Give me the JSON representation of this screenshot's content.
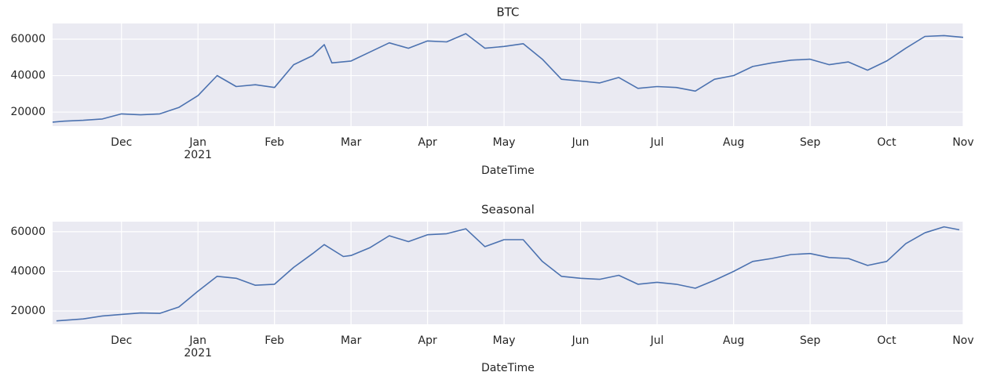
{
  "chart_data": [
    {
      "type": "line",
      "title": "BTC",
      "x_label": "DateTime",
      "color": "#4c72b0",
      "grid": true,
      "background": "#eaeaf2",
      "x": [
        0.1,
        0.25,
        0.5,
        0.75,
        1.0,
        1.25,
        1.5,
        1.75,
        2.0,
        2.25,
        2.5,
        2.75,
        3.0,
        3.25,
        3.5,
        3.65,
        3.75,
        4.0,
        4.25,
        4.5,
        4.75,
        5.0,
        5.25,
        5.5,
        5.75,
        6.0,
        6.25,
        6.5,
        6.75,
        7.0,
        7.25,
        7.5,
        7.75,
        8.0,
        8.25,
        8.5,
        8.75,
        9.0,
        9.25,
        9.5,
        9.75,
        10.0,
        10.25,
        10.5,
        10.75,
        11.0,
        11.25,
        11.5,
        11.75,
        12.0
      ],
      "values": [
        14500,
        15000,
        15500,
        16200,
        19000,
        18500,
        19000,
        22500,
        29000,
        40000,
        34000,
        35000,
        33500,
        46000,
        51000,
        57000,
        47000,
        48000,
        53000,
        58000,
        55000,
        59000,
        58500,
        63000,
        55000,
        56000,
        57500,
        49000,
        38000,
        37000,
        36000,
        39000,
        33000,
        34000,
        33500,
        31500,
        38000,
        40000,
        45000,
        47000,
        48500,
        49000,
        46000,
        47500,
        43000,
        48000,
        55000,
        61500,
        62000,
        61000
      ],
      "xlim": [
        0.1,
        12
      ],
      "xticks": [
        {
          "value": 1,
          "label": "Dec"
        },
        {
          "value": 2,
          "label": "Jan\n2021"
        },
        {
          "value": 3,
          "label": "Feb"
        },
        {
          "value": 4,
          "label": "Mar"
        },
        {
          "value": 5,
          "label": "Apr"
        },
        {
          "value": 6,
          "label": "May"
        },
        {
          "value": 7,
          "label": "Jun"
        },
        {
          "value": 8,
          "label": "Jul"
        },
        {
          "value": 9,
          "label": "Aug"
        },
        {
          "value": 10,
          "label": "Sep"
        },
        {
          "value": 11,
          "label": "Oct"
        },
        {
          "value": 12,
          "label": "Nov"
        }
      ],
      "ylim": [
        12300,
        68600
      ],
      "yticks": [
        20000,
        40000,
        60000
      ]
    },
    {
      "type": "line",
      "title": "Seasonal",
      "x_label": "DateTime",
      "color": "#4c72b0",
      "grid": true,
      "background": "#eaeaf2",
      "x": [
        0.15,
        0.5,
        0.75,
        1.0,
        1.25,
        1.5,
        1.75,
        2.0,
        2.25,
        2.5,
        2.75,
        3.0,
        3.25,
        3.5,
        3.65,
        3.9,
        4.0,
        4.25,
        4.5,
        4.75,
        5.0,
        5.25,
        5.5,
        5.75,
        6.0,
        6.25,
        6.5,
        6.75,
        7.0,
        7.25,
        7.5,
        7.75,
        8.0,
        8.25,
        8.5,
        8.75,
        9.0,
        9.25,
        9.5,
        9.75,
        10.0,
        10.25,
        10.5,
        10.75,
        11.0,
        11.25,
        11.5,
        11.75,
        11.95
      ],
      "values": [
        15000,
        16000,
        17500,
        18300,
        19000,
        18800,
        22000,
        30000,
        37500,
        36500,
        33000,
        33500,
        42000,
        49000,
        53500,
        47500,
        48000,
        52000,
        58000,
        55000,
        58500,
        59000,
        61500,
        52500,
        56000,
        56000,
        45000,
        37500,
        36500,
        36000,
        38000,
        33500,
        34500,
        33500,
        31500,
        35500,
        40000,
        45000,
        46500,
        48500,
        49000,
        47000,
        46500,
        43000,
        45000,
        54000,
        59500,
        62500,
        61000
      ],
      "xlim": [
        0.1,
        12
      ],
      "xticks": [
        {
          "value": 1,
          "label": "Dec"
        },
        {
          "value": 2,
          "label": "Jan\n2021"
        },
        {
          "value": 3,
          "label": "Feb"
        },
        {
          "value": 4,
          "label": "Mar"
        },
        {
          "value": 5,
          "label": "Apr"
        },
        {
          "value": 6,
          "label": "May"
        },
        {
          "value": 7,
          "label": "Jun"
        },
        {
          "value": 8,
          "label": "Jul"
        },
        {
          "value": 9,
          "label": "Aug"
        },
        {
          "value": 10,
          "label": "Sep"
        },
        {
          "value": 11,
          "label": "Oct"
        },
        {
          "value": 12,
          "label": "Nov"
        }
      ],
      "ylim": [
        13300,
        65100
      ],
      "yticks": [
        20000,
        40000,
        60000
      ]
    }
  ]
}
